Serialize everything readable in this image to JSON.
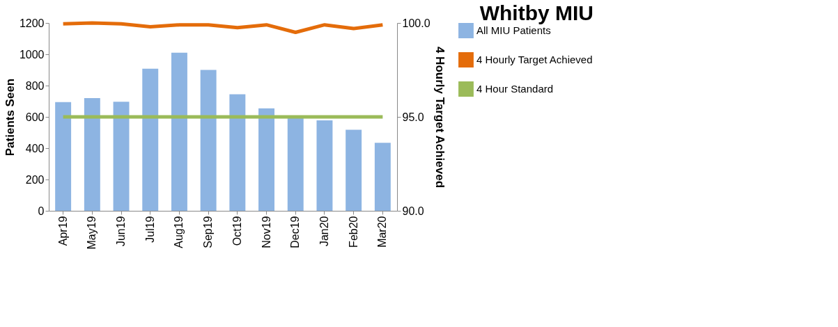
{
  "chart_data": {
    "type": "bar",
    "title": "Whitby MIU",
    "ylabel": "Patients Seen",
    "y2label": "4 Hourly Target Achieved",
    "categories": [
      "Apr19",
      "May19",
      "Jun19",
      "Jul19",
      "Aug19",
      "Sep19",
      "Oct19",
      "Nov19",
      "Dec19",
      "Jan20",
      "Feb20",
      "Mar20"
    ],
    "series": [
      {
        "name": "All MIU Patients",
        "color": "#8db4e2",
        "values": [
          695,
          720,
          697,
          908,
          1010,
          900,
          745,
          655,
          600,
          578,
          518,
          435
        ]
      },
      {
        "name": "4 Hourly Target Achieved",
        "type": "line",
        "axis": "y2",
        "color": "#e46c0a",
        "values": [
          99.95,
          100.0,
          99.95,
          99.8,
          99.9,
          99.9,
          99.75,
          99.9,
          99.5,
          99.9,
          99.7,
          99.9
        ]
      },
      {
        "name": "4 Hour Standard",
        "type": "line",
        "axis": "y2",
        "color": "#9bbb59",
        "values": [
          95,
          95,
          95,
          95,
          95,
          95,
          95,
          95,
          95,
          95,
          95,
          95
        ]
      }
    ],
    "ylim": [
      0,
      1200
    ],
    "yticks": [
      0,
      200,
      400,
      600,
      800,
      1000,
      1200
    ],
    "y2lim": [
      90,
      100
    ],
    "y2ticks": [
      {
        "value": 90,
        "label": "90.0"
      },
      {
        "value": 95,
        "label": "95.0"
      },
      {
        "value": 100,
        "label": "100.0"
      }
    ],
    "grid": false,
    "legend": "right",
    "marker": "none",
    "line_style": "solid"
  }
}
